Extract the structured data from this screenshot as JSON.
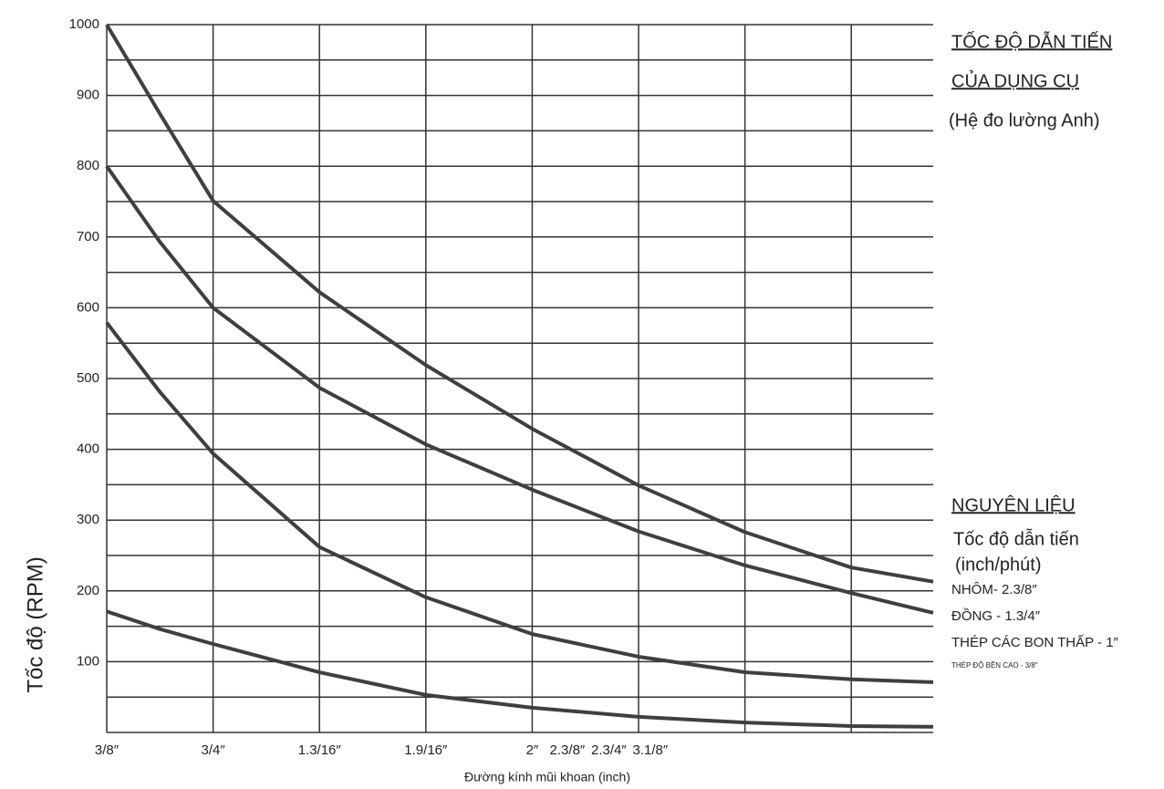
{
  "chart_data": {
    "type": "line",
    "title_lines": [
      "TỐC ĐỘ DẪN TIẾN",
      "CỦA DỤNG CỤ"
    ],
    "subtitle": "(Hệ    đo lường Anh)",
    "legend_title": "NGUYÊN LIỆU",
    "legend_subtitle": [
      "Tốc độ dẫn tiến",
      "(inch/phút)"
    ],
    "ylabel": "Tốc độ    (RPM)",
    "xlabel": "Đường kính mũi khoan (inch)",
    "x": [
      0,
      0.5,
      1,
      2,
      3,
      4,
      5,
      6,
      7,
      7.77
    ],
    "series": [
      {
        "name": "NHÔM- 2.3/8″",
        "color": "#3f3f3f",
        "values": [
          1000,
          874,
          751,
          622,
          519,
          429,
          349,
          283,
          233,
          213
        ]
      },
      {
        "name": "ĐỒNG - 1.3/4″",
        "color": "#3f3f3f",
        "values": [
          800,
          693,
          600,
          487,
          407,
          343,
          284,
          236,
          197,
          169
        ]
      },
      {
        "name": "THÉP CÁC BON THẤP - 1″",
        "color": "#3f3f3f",
        "values": [
          579,
          481,
          394,
          262,
          191,
          139,
          107,
          85,
          75,
          71
        ]
      },
      {
        "name": "THÉP ĐỘ BỀN CAO - 3/8″",
        "color": "#3f3f3f",
        "values": [
          171,
          146,
          125,
          85,
          53,
          35,
          22,
          14,
          9,
          8
        ]
      }
    ],
    "xlim": [
      0,
      7.77
    ],
    "ylim": [
      0,
      1000
    ],
    "xticks": [
      {
        "value": 0,
        "label": "3/8″"
      },
      {
        "value": 1,
        "label": "3/4″"
      },
      {
        "value": 2,
        "label": "1.3/16″"
      },
      {
        "value": 3,
        "label": "1.9/16″"
      },
      {
        "value": 4,
        "label": "2″"
      },
      {
        "value": 4.33,
        "label": "2.3/8″"
      },
      {
        "value": 4.72,
        "label": "2.3/4″"
      },
      {
        "value": 5.11,
        "label": "3.1/8″"
      }
    ],
    "xgrid": [
      0,
      1,
      2,
      3,
      4,
      5,
      6,
      7
    ],
    "yticks": [
      100,
      200,
      300,
      400,
      500,
      600,
      700,
      800,
      900,
      1000
    ],
    "ygrid_minor": [
      0,
      50,
      150,
      250,
      350,
      450,
      550,
      650,
      750,
      850,
      950
    ],
    "grid": true
  }
}
